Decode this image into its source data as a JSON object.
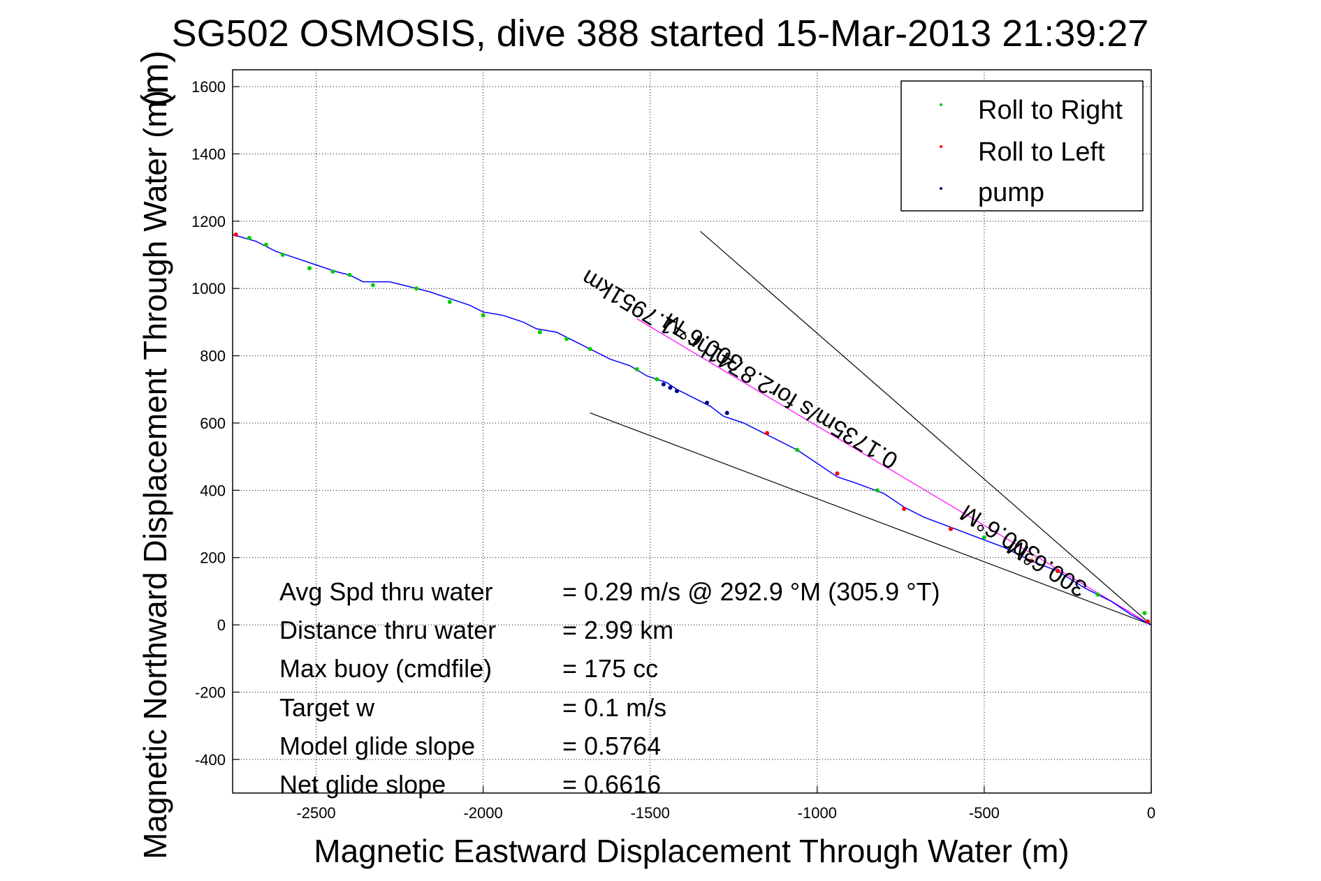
{
  "chart_data": {
    "type": "line",
    "title": "SG502 OSMOSIS, dive 388 started 15-Mar-2013 21:39:27",
    "title_overlay": "(m)",
    "xlabel": "Magnetic Eastward Displacement Through Water (m)",
    "ylabel": "Magnetic Northward Displacement Through Water (m)",
    "xlim": [
      -2750,
      0
    ],
    "ylim": [
      -500,
      1650
    ],
    "xticks": [
      -2500,
      -2000,
      -1500,
      -1000,
      -500,
      0
    ],
    "yticks": [
      -400,
      -200,
      0,
      200,
      400,
      600,
      800,
      1000,
      1200,
      1400,
      1600
    ],
    "grid": true,
    "legend": {
      "placement": "top-right",
      "entries": [
        {
          "label": "Roll to Right",
          "color": "#00cc00"
        },
        {
          "label": "Roll to Left",
          "color": "#ff0000"
        },
        {
          "label": "pump",
          "color": "#000080"
        }
      ]
    },
    "track": {
      "name": "track",
      "color": "#0000ff",
      "x": [
        0,
        -60,
        -120,
        -200,
        -280,
        -360,
        -440,
        -520,
        -600,
        -680,
        -740,
        -800,
        -880,
        -940,
        -1000,
        -1060,
        -1120,
        -1160,
        -1220,
        -1280,
        -1320,
        -1380,
        -1420,
        -1450,
        -1480,
        -1510,
        -1560,
        -1620,
        -1680,
        -1720,
        -1780,
        -1840,
        -1880,
        -1940,
        -2000,
        -2040,
        -2100,
        -2160,
        -2200,
        -2240,
        -2280,
        -2320,
        -2360,
        -2400,
        -2440,
        -2500,
        -2560,
        -2620,
        -2680,
        -2750
      ],
      "y": [
        0,
        30,
        70,
        110,
        160,
        190,
        230,
        260,
        290,
        320,
        350,
        390,
        420,
        440,
        480,
        520,
        550,
        570,
        600,
        620,
        650,
        680,
        700,
        720,
        730,
        740,
        770,
        790,
        820,
        840,
        870,
        880,
        900,
        920,
        930,
        950,
        970,
        990,
        1000,
        1010,
        1020,
        1020,
        1020,
        1040,
        1050,
        1070,
        1090,
        1110,
        1140,
        1160
      ]
    },
    "points": {
      "roll_right": {
        "x": [
          -20,
          -160,
          -500,
          -820,
          -1060,
          -1480,
          -1540,
          -1680,
          -1750,
          -1830,
          -2000,
          -2100,
          -2200,
          -2330,
          -2400,
          -2450,
          -2520,
          -2600,
          -2650,
          -2700
        ],
        "y": [
          35,
          90,
          260,
          400,
          520,
          730,
          760,
          820,
          850,
          870,
          920,
          960,
          1000,
          1010,
          1040,
          1050,
          1060,
          1100,
          1130,
          1150
        ]
      },
      "roll_left": {
        "x": [
          -10,
          -280,
          -360,
          -600,
          -740,
          -940,
          -1150,
          -2740
        ],
        "y": [
          10,
          160,
          190,
          285,
          345,
          450,
          570,
          1160
        ]
      },
      "pump": {
        "x": [
          -1420,
          -1440,
          -1460,
          -1330,
          -1270
        ],
        "y": [
          695,
          705,
          715,
          660,
          630
        ]
      }
    },
    "reference_lines": [
      {
        "color": "#000000",
        "x": [
          0,
          -1350
        ],
        "y": [
          0,
          1170
        ]
      },
      {
        "color": "#000000",
        "x": [
          0,
          -1680
        ],
        "y": [
          0,
          630
        ]
      },
      {
        "color": "#ff00ff",
        "x": [
          0,
          -1540
        ],
        "y": [
          0,
          910
        ]
      }
    ],
    "annotations": [
      {
        "text": "300.6°M",
        "x": -1330,
        "y": 860,
        "rotation": 32
      },
      {
        "text": "0.1735m/s for2.8741hr =1.7951km",
        "x": -1220,
        "y": 780,
        "rotation": 31
      },
      {
        "text": "300.6°M",
        "x": -440,
        "y": 290,
        "rotation": 32
      },
      {
        "text": "300.6°M",
        "x": -300,
        "y": 190,
        "rotation": 32
      }
    ],
    "stats": [
      {
        "label": "Avg Spd thru water",
        "value": "=  0.29 m/s @ 292.9 °M (305.9 °T)"
      },
      {
        "label": "Distance thru water",
        "value": "=  2.99 km"
      },
      {
        "label": "Max buoy (cmdfile)",
        "value": "= 175 cc"
      },
      {
        "label": "Target w",
        "value": "= 0.1 m/s"
      },
      {
        "label": "Model glide slope",
        "value": "= 0.5764"
      },
      {
        "label": "Net glide slope",
        "value": "= 0.6616"
      }
    ]
  }
}
